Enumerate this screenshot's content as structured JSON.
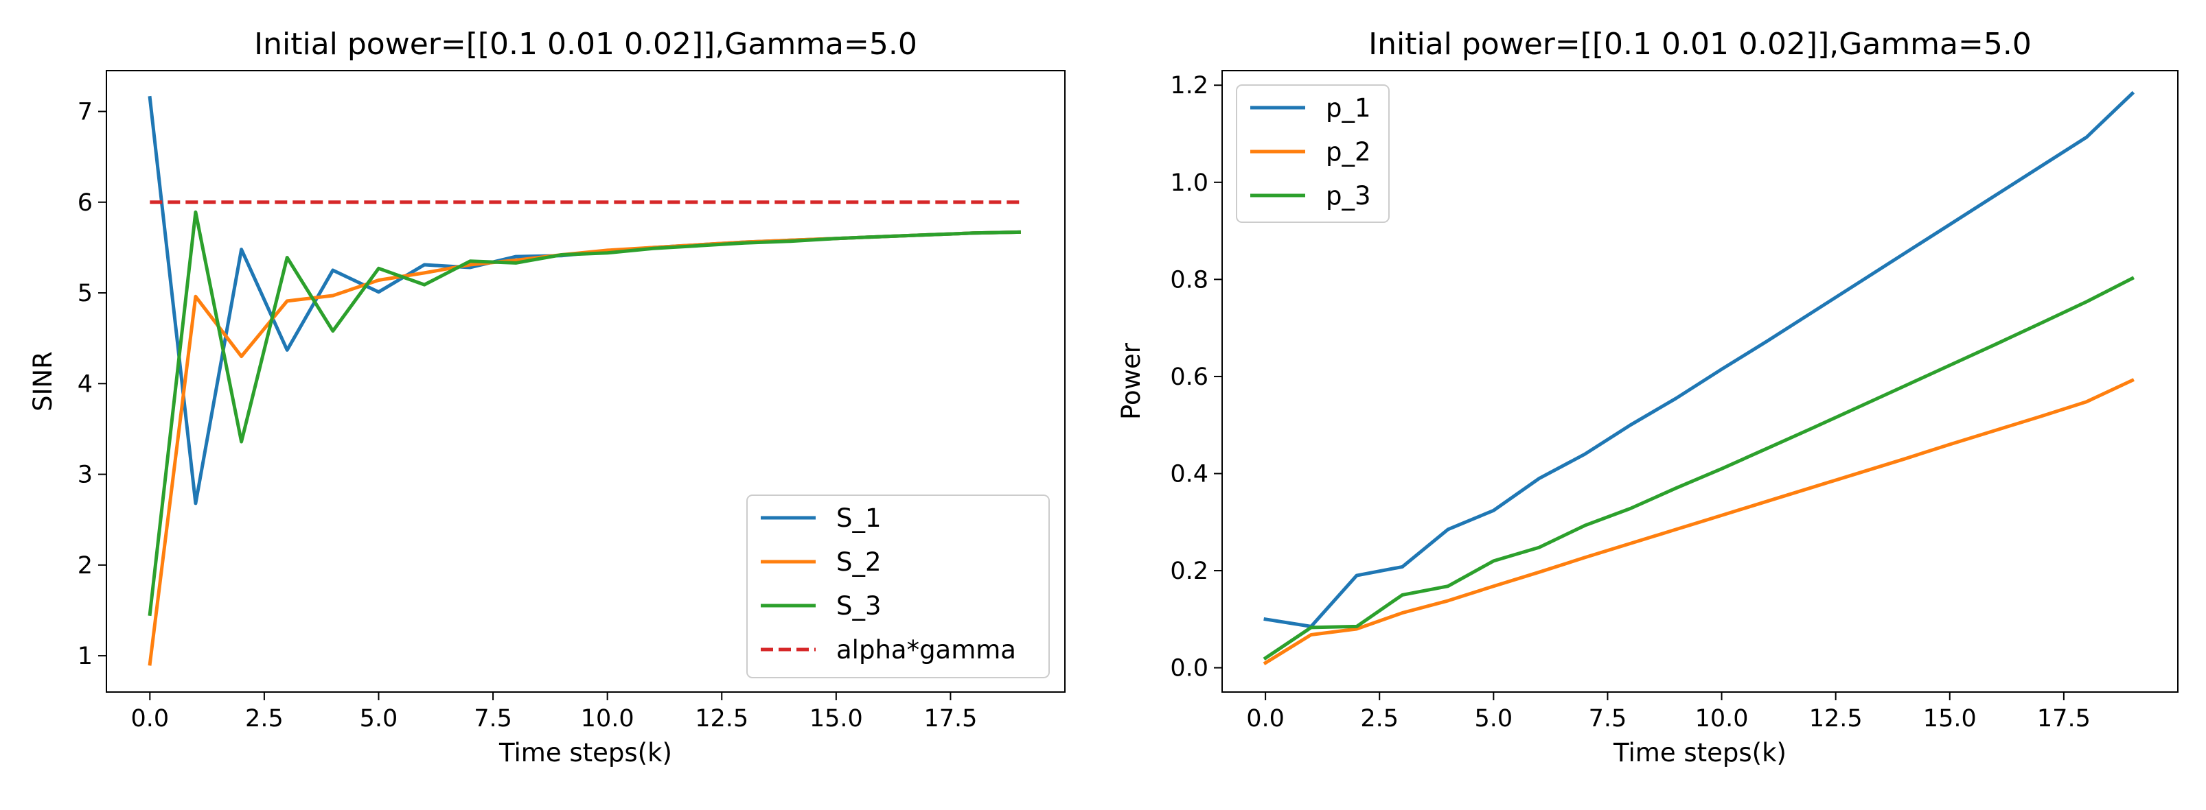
{
  "chart_data": [
    {
      "type": "line",
      "title": "Initial power=[[0.1  0.01 0.02]],Gamma=5.0",
      "xlabel": "Time steps(k)",
      "ylabel": "SINR",
      "xlim": [
        -0.95,
        20.0
      ],
      "ylim": [
        0.6,
        7.45
      ],
      "xticks": [
        0,
        2.5,
        5,
        7.5,
        10,
        12.5,
        15,
        17.5
      ],
      "xtick_labels": [
        "0.0",
        "2.5",
        "5.0",
        "7.5",
        "10.0",
        "12.5",
        "15.0",
        "17.5"
      ],
      "yticks": [
        1,
        2,
        3,
        4,
        5,
        6,
        7
      ],
      "ytick_labels": [
        "1",
        "2",
        "3",
        "4",
        "5",
        "6",
        "7"
      ],
      "legend_position": "lower-right",
      "x": [
        0,
        1,
        2,
        3,
        4,
        5,
        6,
        7,
        8,
        9,
        10,
        11,
        12,
        13,
        14,
        15,
        16,
        17,
        18,
        19
      ],
      "series": [
        {
          "name": "S_1",
          "color": "#1f77b4",
          "style": "solid",
          "values": [
            7.15,
            2.68,
            5.48,
            4.37,
            5.25,
            5.01,
            5.31,
            5.28,
            5.4,
            5.41,
            5.46,
            5.5,
            5.53,
            5.56,
            5.58,
            5.6,
            5.62,
            5.64,
            5.66,
            5.67
          ]
        },
        {
          "name": "S_2",
          "color": "#ff7f0e",
          "style": "solid",
          "values": [
            0.91,
            4.96,
            4.3,
            4.91,
            4.97,
            5.14,
            5.22,
            5.31,
            5.36,
            5.42,
            5.47,
            5.5,
            5.53,
            5.56,
            5.58,
            5.6,
            5.62,
            5.64,
            5.66,
            5.67
          ]
        },
        {
          "name": "S_3",
          "color": "#2ca02c",
          "style": "solid",
          "values": [
            1.46,
            5.89,
            3.36,
            5.39,
            4.58,
            5.27,
            5.09,
            5.35,
            5.33,
            5.42,
            5.44,
            5.49,
            5.52,
            5.55,
            5.57,
            5.6,
            5.62,
            5.64,
            5.66,
            5.67
          ]
        },
        {
          "name": "alpha*gamma",
          "color": "#d62728",
          "style": "dashed",
          "values": [
            6,
            6,
            6,
            6,
            6,
            6,
            6,
            6,
            6,
            6,
            6,
            6,
            6,
            6,
            6,
            6,
            6,
            6,
            6,
            6
          ]
        }
      ]
    },
    {
      "type": "line",
      "title": "Initial power=[[0.1  0.01 0.02]],Gamma=5.0",
      "xlabel": "Time steps(k)",
      "ylabel": "Power",
      "xlim": [
        -0.95,
        20.0
      ],
      "ylim": [
        -0.05,
        1.23
      ],
      "xticks": [
        0,
        2.5,
        5,
        7.5,
        10,
        12.5,
        15,
        17.5
      ],
      "xtick_labels": [
        "0.0",
        "2.5",
        "5.0",
        "7.5",
        "10.0",
        "12.5",
        "15.0",
        "17.5"
      ],
      "yticks": [
        0,
        0.2,
        0.4,
        0.6,
        0.8,
        1.0,
        1.2
      ],
      "ytick_labels": [
        "0.0",
        "0.2",
        "0.4",
        "0.6",
        "0.8",
        "1.0",
        "1.2"
      ],
      "legend_position": "upper-left",
      "x": [
        0,
        1,
        2,
        3,
        4,
        5,
        6,
        7,
        8,
        9,
        10,
        11,
        12,
        13,
        14,
        15,
        16,
        17,
        18,
        19
      ],
      "series": [
        {
          "name": "p_1",
          "color": "#1f77b4",
          "style": "solid",
          "values": [
            0.1,
            0.085,
            0.19,
            0.208,
            0.285,
            0.324,
            0.39,
            0.44,
            0.5,
            0.555,
            0.615,
            0.673,
            0.733,
            0.793,
            0.853,
            0.913,
            0.973,
            1.033,
            1.093,
            1.183
          ]
        },
        {
          "name": "p_2",
          "color": "#ff7f0e",
          "style": "solid",
          "values": [
            0.01,
            0.068,
            0.08,
            0.113,
            0.138,
            0.168,
            0.197,
            0.227,
            0.256,
            0.285,
            0.314,
            0.343,
            0.372,
            0.401,
            0.43,
            0.46,
            0.489,
            0.518,
            0.548,
            0.592
          ]
        },
        {
          "name": "p_3",
          "color": "#2ca02c",
          "style": "solid",
          "values": [
            0.02,
            0.083,
            0.085,
            0.15,
            0.168,
            0.22,
            0.248,
            0.293,
            0.328,
            0.37,
            0.41,
            0.452,
            0.494,
            0.537,
            0.58,
            0.623,
            0.666,
            0.71,
            0.754,
            0.802
          ]
        }
      ]
    }
  ]
}
